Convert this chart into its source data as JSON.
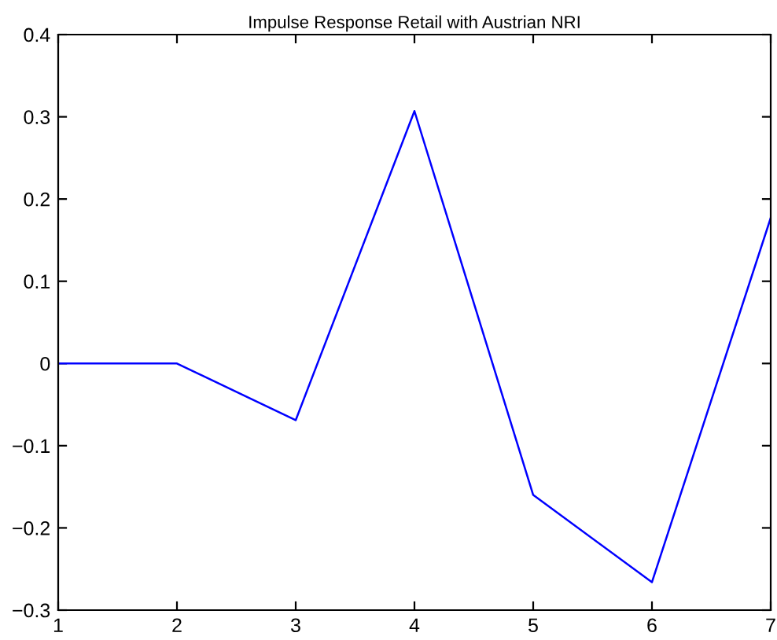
{
  "chart_data": {
    "type": "line",
    "title": "Impulse Response Retail with Austrian NRI",
    "x": [
      1,
      2,
      3,
      4,
      5,
      6,
      7
    ],
    "series": [
      {
        "color": "#0000ff",
        "values": [
          0,
          0,
          -0.069,
          0.307,
          -0.16,
          -0.266,
          0.177
        ]
      }
    ],
    "xlim": [
      1,
      7
    ],
    "xticks": [
      1,
      2,
      3,
      4,
      5,
      6,
      7
    ],
    "ylim": [
      -0.3,
      0.4
    ],
    "yticks": [
      -0.3,
      -0.2,
      -0.1,
      0,
      0.1,
      0.2,
      0.3,
      0.4
    ],
    "grid": false,
    "legend": false
  }
}
